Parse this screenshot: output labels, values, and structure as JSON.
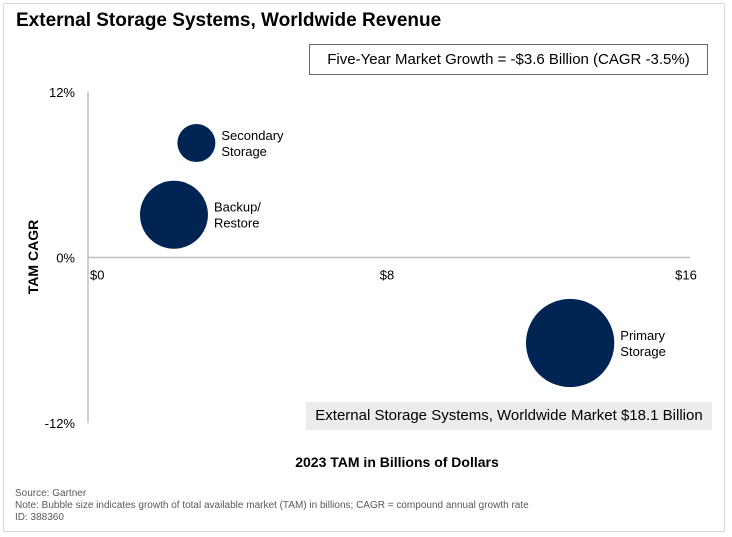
{
  "chart_data": {
    "type": "bubble",
    "title": "External Storage Systems, Worldwide Revenue",
    "xlabel": "2023 TAM in Billions of Dollars",
    "ylabel": "TAM CAGR",
    "xlim": [
      0,
      16
    ],
    "ylim": [
      -12,
      12
    ],
    "x_ticks": [
      "$0",
      "$8",
      "$16"
    ],
    "x_tick_values": [
      0,
      8,
      16
    ],
    "y_ticks": [
      "12%",
      "0%",
      "-12%"
    ],
    "y_tick_values": [
      12,
      0,
      -12
    ],
    "grid": false,
    "bubble_color": "#002454",
    "points": [
      {
        "label": [
          "Secondary",
          "Storage"
        ],
        "x": 2.9,
        "y": 8.3,
        "size": 1.0
      },
      {
        "label": [
          "Backup/",
          "Restore"
        ],
        "x": 2.3,
        "y": 3.1,
        "size": 3.2
      },
      {
        "label": [
          "Primary",
          "Storage"
        ],
        "x": 12.9,
        "y": -6.2,
        "size": 5.4
      }
    ],
    "annotations": {
      "growth": "Five-Year Market Growth = -$3.6 Billion (CAGR -3.5%)",
      "market": "External Storage Systems, Worldwide Market $18.1 Billion"
    }
  },
  "footer": {
    "source": "Source: Gartner",
    "note": "Note: Bubble size indicates growth of total available market (TAM) in billions; CAGR = compound annual growth rate",
    "id": "ID: 388360"
  }
}
